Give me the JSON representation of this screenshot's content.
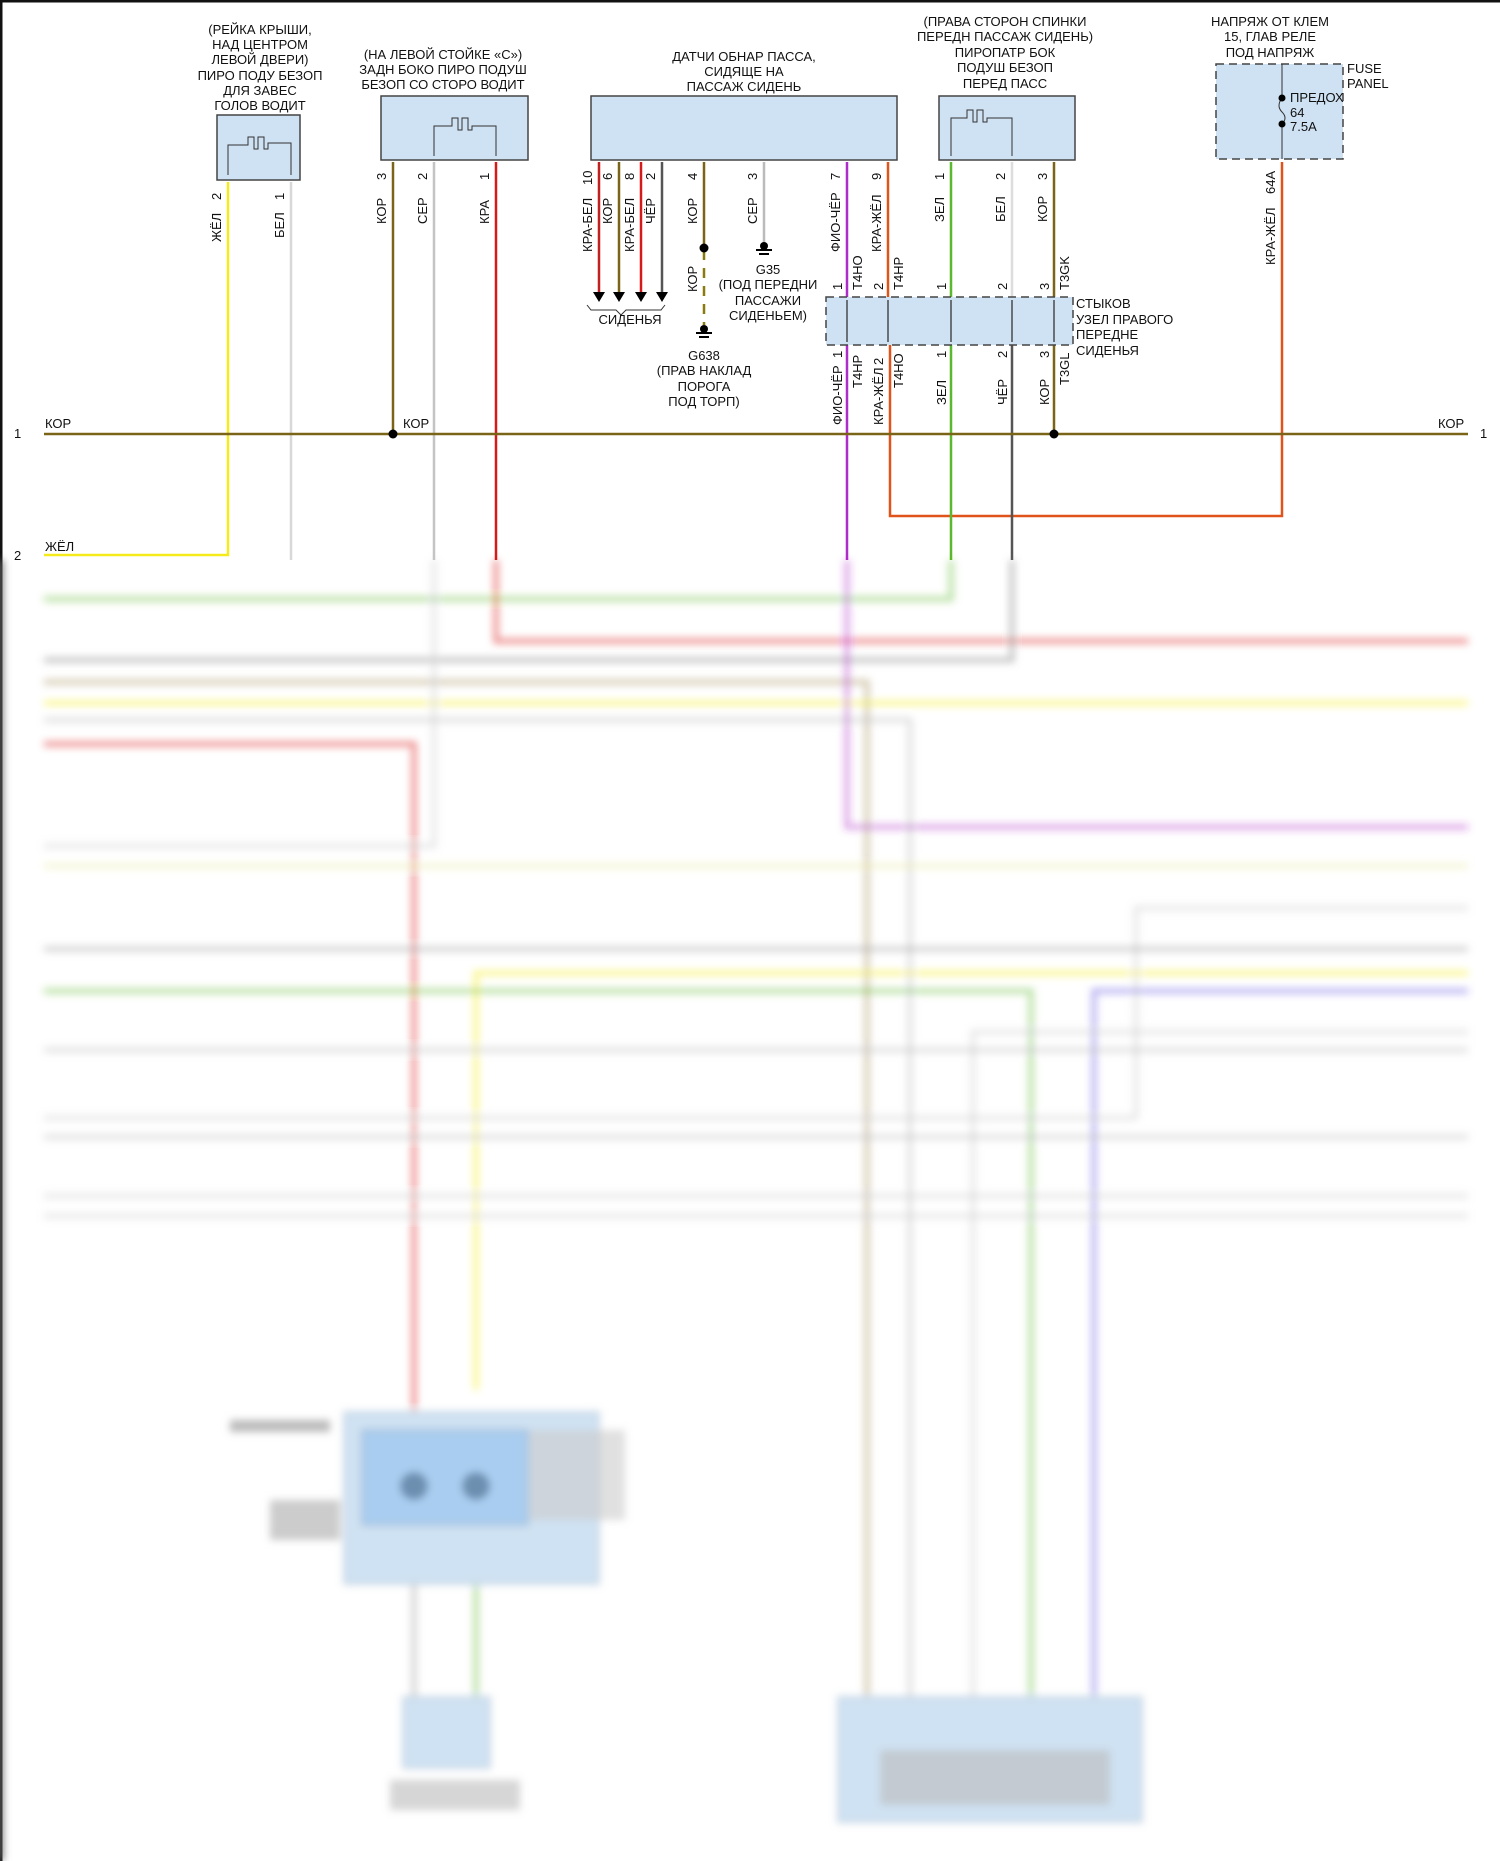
{
  "components": {
    "driver_curtain_airbag": {
      "label": [
        "(РЕЙКА КРЫШИ,",
        "НАД ЦЕНТРОМ",
        "ЛЕВОЙ ДВЕРИ)",
        "ПИРО ПОДУ БЕЗОП",
        "ДЛЯ ЗАВЕС",
        "ГОЛОВ ВОДИТ"
      ],
      "pins": [
        {
          "num": "2",
          "wire": "ЖЁЛ"
        },
        {
          "num": "1",
          "wire": "БЕЛ"
        }
      ]
    },
    "driver_rear_side_airbag": {
      "label": [
        "(НА ЛЕВОЙ СТОЙКЕ «С»)",
        "ЗАДН БОКО ПИРО ПОДУШ",
        "БЕЗОП СО СТОРО ВОДИТ"
      ],
      "pins": [
        {
          "num": "3",
          "wire": "КОР"
        },
        {
          "num": "2",
          "wire": "СЕР"
        },
        {
          "num": "1",
          "wire": "КРА"
        }
      ]
    },
    "occupant_sensor": {
      "label": [
        "ДАТЧИ ОБНАР ПАССА,",
        "СИДЯЩЕ НА",
        "ПАССАЖ СИДЕНЬ"
      ],
      "pins": [
        {
          "num": "10",
          "wire": "КРА-БЕЛ"
        },
        {
          "num": "6",
          "wire": "КОР"
        },
        {
          "num": "8",
          "wire": "КРА-БЕЛ"
        },
        {
          "num": "2",
          "wire": "ЧЁР"
        },
        {
          "num": "4",
          "wire": "КОР"
        },
        {
          "num": "3",
          "wire": "СЕР"
        },
        {
          "num": "7",
          "wire": "ФИО-ЧЁР"
        },
        {
          "num": "9",
          "wire": "КРА-ЖЁЛ"
        }
      ],
      "seats_label": "СИДЕНЬЯ"
    },
    "passenger_side_airbag": {
      "label": [
        "(ПРАВА СТОРОН СПИНКИ",
        "ПЕРЕДН ПАССАЖ СИДЕНЬ)",
        "ПИРОПАТР БОК",
        "ПОДУШ БЕЗОП",
        "ПЕРЕД ПАСС"
      ],
      "pins": [
        {
          "num": "1",
          "wire": "ЗЕЛ"
        },
        {
          "num": "2",
          "wire": "БЕЛ"
        },
        {
          "num": "3",
          "wire": "КОР"
        }
      ]
    },
    "fuse_panel": {
      "label": [
        "НАПРЯЖ ОТ КЛЕМ",
        "15, ГЛАВ РЕЛЕ",
        "ПОД НАПРЯЖ"
      ],
      "panel": [
        "FUSE",
        "PANEL"
      ],
      "fuse": [
        "ПРЕДОХ",
        "64",
        "7.5A"
      ],
      "pin": "64A",
      "wire": "КРА-ЖЁЛ"
    },
    "connector_node": {
      "label": [
        "СТЫКОВ",
        "УЗЕЛ ПРАВОГО",
        "ПЕРЕДНЕ",
        "СИДЕНЬЯ"
      ],
      "top": [
        "Т4НО",
        "Т4НР",
        "Т3GK"
      ],
      "bottom": [
        "Т4НР",
        "Т4НО",
        "Т3GL"
      ],
      "pin1": "1",
      "pin2": "2",
      "pin3": "3",
      "bottom_wires": [
        "ФИО-ЧЁР",
        "КРА-ЖЁЛ",
        "ЗЕЛ",
        "ЧЁР",
        "КОР"
      ]
    }
  },
  "grounds": {
    "g35": {
      "name": "G35",
      "desc": [
        "(ПОД ПЕРЕДНИ",
        "ПАССАЖИ",
        "СИДЕНЬЕМ)"
      ]
    },
    "g638": {
      "name": "G638",
      "desc": [
        "(ПРАВ НАКЛАД",
        "ПОРОГА",
        "ПОД ТОРП)"
      ],
      "wire": "КОР"
    }
  },
  "bus": {
    "row1": "1",
    "row1_wire": "КОР",
    "row2": "2",
    "row2_wire": "ЖЁЛ"
  },
  "wire_colors": {
    "yellow": "#f5ea1a",
    "white": "#d8d8d8",
    "brown": "#7a6418",
    "grey": "#a8a8a8",
    "red": "#d61a1a",
    "magenta": "#b02cc8",
    "orange": "#e0531a",
    "green": "#5cb82c",
    "black": "#555555",
    "blue": "#5a4fe0"
  }
}
